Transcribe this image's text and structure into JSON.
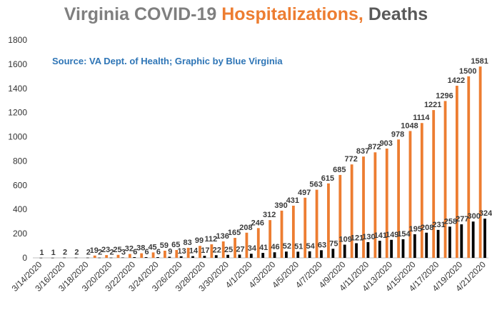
{
  "chart_data": {
    "type": "bar",
    "title_parts": [
      "Virginia COVID-19 ",
      "Hospitalizations, ",
      "Deaths"
    ],
    "annotation": "Source: VA Dept. of Health; Graphic by Blue Virginia",
    "ylim": [
      0,
      1800
    ],
    "yticks": [
      0,
      200,
      400,
      600,
      800,
      1000,
      1200,
      1400,
      1600,
      1800
    ],
    "grid": false,
    "categories": [
      "3/14/2020",
      "3/15/2020",
      "3/16/2020",
      "3/17/2020",
      "3/18/2020",
      "3/19/2020",
      "3/20/2020",
      "3/21/2020",
      "3/22/2020",
      "3/23/2020",
      "3/24/2020",
      "3/25/2020",
      "3/26/2020",
      "3/27/2020",
      "3/28/2020",
      "3/29/2020",
      "3/30/2020",
      "3/31/2020",
      "4/1/2020",
      "4/2/2020",
      "4/3/2020",
      "4/4/2020",
      "4/5/2020",
      "4/6/2020",
      "4/7/2020",
      "4/8/2020",
      "4/9/2020",
      "4/10/2020",
      "4/11/2020",
      "4/12/2020",
      "4/13/2020",
      "4/14/2020",
      "4/15/2020",
      "4/16/2020",
      "4/17/2020",
      "4/18/2020",
      "4/19/2020",
      "4/20/2020",
      "4/21/2020"
    ],
    "xtick_labels": [
      "3/14/2020",
      "3/16/2020",
      "3/18/2020",
      "3/20/2020",
      "3/22/2020",
      "3/24/2020",
      "3/26/2020",
      "3/28/2020",
      "3/30/2020",
      "4/1/2020",
      "4/3/2020",
      "4/5/2020",
      "4/7/2020",
      "4/9/2020",
      "4/11/2020",
      "4/13/2020",
      "4/15/2020",
      "4/17/2020",
      "4/19/2020",
      "4/21/2020"
    ],
    "series": [
      {
        "color": "#ed7d31",
        "values": [
          null,
          null,
          null,
          null,
          null,
          19,
          23,
          25,
          32,
          38,
          45,
          59,
          65,
          83,
          99,
          112,
          136,
          165,
          208,
          246,
          312,
          390,
          431,
          497,
          563,
          615,
          685,
          772,
          837,
          872,
          903,
          978,
          1048,
          1114,
          1221,
          1296,
          1422,
          1500,
          1581
        ]
      },
      {
        "color": "#000000",
        "values": [
          1,
          1,
          2,
          2,
          2,
          2,
          2,
          3,
          6,
          6,
          6,
          9,
          13,
          14,
          17,
          22,
          25,
          27,
          34,
          41,
          46,
          52,
          51,
          54,
          63,
          75,
          109,
          121,
          130,
          141,
          149,
          154,
          195,
          208,
          231,
          258,
          277,
          300,
          324
        ]
      }
    ]
  }
}
